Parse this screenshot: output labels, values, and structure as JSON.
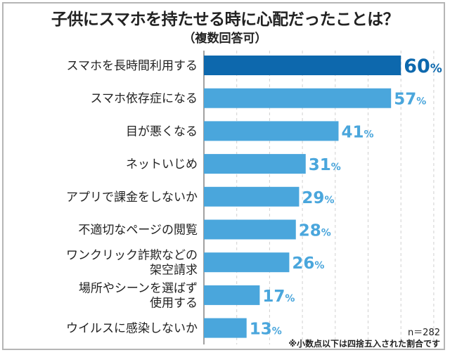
{
  "chart_data": {
    "type": "bar",
    "orientation": "horizontal",
    "title": "子供にスマホを持たせる時に心配だったことは？",
    "subtitle": "（複数回答可）",
    "categories": [
      "スマホを長時間利用する",
      "スマホ依存症になる",
      "目が悪くなる",
      "ネットいじめ",
      "アプリで課金をしないか",
      "不適切なページの閲覧",
      "ワンクリック詐欺などの\n架空請求",
      "場所やシーンを選ばず\n使用する",
      "ウイルスに感染しないか"
    ],
    "values": [
      60,
      57,
      41,
      31,
      29,
      28,
      26,
      17,
      13
    ],
    "value_suffix": "%",
    "xlim": [
      0,
      70
    ],
    "grid": true,
    "colors": {
      "highlight": "#0d68ad",
      "default": "#4aa6dc"
    },
    "sample_size": "n＝282",
    "footnote": "※小数点以下は四捨五入された割合です"
  }
}
